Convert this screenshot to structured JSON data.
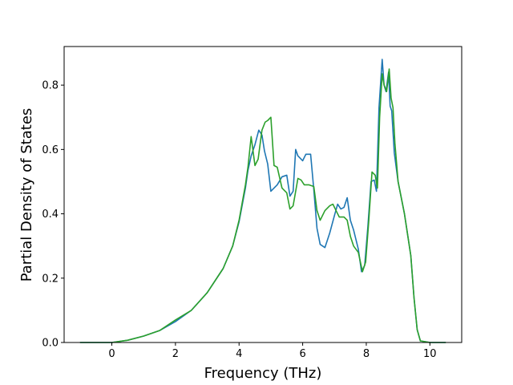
{
  "chart_data": {
    "type": "line",
    "xlabel": "Frequency (THz)",
    "ylabel": "Partial Density of States",
    "xlim": [
      -1.5,
      11.0
    ],
    "ylim": [
      0.0,
      0.92
    ],
    "xticks": [
      "0",
      "2",
      "4",
      "6",
      "8",
      "10"
    ],
    "xtick_values": [
      0,
      2,
      4,
      6,
      8,
      10
    ],
    "yticks": [
      "0.0",
      "0.2",
      "0.4",
      "0.6",
      "0.8"
    ],
    "ytick_values": [
      0.0,
      0.2,
      0.4,
      0.6,
      0.8
    ],
    "grid": false,
    "legend": "none",
    "series": [
      {
        "color": "#1f77b4",
        "x": [
          -1.0,
          0.0,
          0.5,
          1.0,
          1.5,
          2.0,
          2.5,
          3.0,
          3.5,
          3.8,
          4.0,
          4.2,
          4.28,
          4.38,
          4.5,
          4.62,
          4.72,
          4.8,
          4.9,
          5.0,
          5.2,
          5.35,
          5.5,
          5.6,
          5.7,
          5.78,
          5.85,
          6.0,
          6.1,
          6.25,
          6.35,
          6.45,
          6.55,
          6.7,
          6.85,
          7.0,
          7.1,
          7.2,
          7.3,
          7.4,
          7.5,
          7.6,
          7.75,
          7.85,
          7.95,
          8.05,
          8.15,
          8.25,
          8.32,
          8.4,
          8.5,
          8.56,
          8.62,
          8.7,
          8.75,
          8.8,
          8.88,
          9.0,
          9.2,
          9.4,
          9.5,
          9.6,
          9.7,
          10.0,
          10.5
        ],
        "y": [
          0.0,
          0.0,
          0.007,
          0.02,
          0.037,
          0.065,
          0.1,
          0.155,
          0.23,
          0.3,
          0.375,
          0.48,
          0.535,
          0.58,
          0.615,
          0.66,
          0.645,
          0.595,
          0.555,
          0.47,
          0.49,
          0.515,
          0.52,
          0.455,
          0.47,
          0.6,
          0.58,
          0.565,
          0.585,
          0.585,
          0.475,
          0.355,
          0.305,
          0.295,
          0.34,
          0.395,
          0.43,
          0.415,
          0.42,
          0.45,
          0.38,
          0.35,
          0.29,
          0.22,
          0.24,
          0.36,
          0.5,
          0.505,
          0.47,
          0.73,
          0.88,
          0.8,
          0.78,
          0.84,
          0.735,
          0.72,
          0.59,
          0.5,
          0.4,
          0.27,
          0.14,
          0.04,
          0.005,
          0.0,
          0.0
        ]
      },
      {
        "color": "#2ca02c",
        "x": [
          -1.0,
          0.0,
          0.5,
          1.0,
          1.5,
          2.0,
          2.5,
          3.0,
          3.5,
          3.8,
          4.0,
          4.2,
          4.28,
          4.38,
          4.5,
          4.6,
          4.72,
          4.82,
          4.9,
          5.0,
          5.1,
          5.2,
          5.35,
          5.5,
          5.6,
          5.7,
          5.78,
          5.85,
          5.95,
          6.05,
          6.2,
          6.35,
          6.45,
          6.55,
          6.7,
          6.85,
          6.95,
          7.05,
          7.15,
          7.3,
          7.4,
          7.5,
          7.6,
          7.75,
          7.88,
          7.98,
          8.08,
          8.18,
          8.28,
          8.35,
          8.42,
          8.5,
          8.56,
          8.64,
          8.72,
          8.78,
          8.84,
          8.9,
          9.0,
          9.2,
          9.4,
          9.5,
          9.6,
          9.7,
          10.0,
          10.5
        ],
        "y": [
          0.0,
          0.0,
          0.007,
          0.02,
          0.037,
          0.07,
          0.1,
          0.155,
          0.23,
          0.3,
          0.38,
          0.49,
          0.545,
          0.64,
          0.55,
          0.57,
          0.66,
          0.685,
          0.69,
          0.7,
          0.55,
          0.545,
          0.48,
          0.465,
          0.415,
          0.425,
          0.47,
          0.51,
          0.505,
          0.49,
          0.49,
          0.485,
          0.41,
          0.38,
          0.41,
          0.425,
          0.43,
          0.41,
          0.39,
          0.39,
          0.38,
          0.33,
          0.3,
          0.28,
          0.22,
          0.25,
          0.38,
          0.53,
          0.52,
          0.48,
          0.7,
          0.835,
          0.8,
          0.78,
          0.85,
          0.76,
          0.73,
          0.62,
          0.5,
          0.4,
          0.27,
          0.14,
          0.04,
          0.005,
          0.0,
          0.0
        ]
      }
    ]
  }
}
